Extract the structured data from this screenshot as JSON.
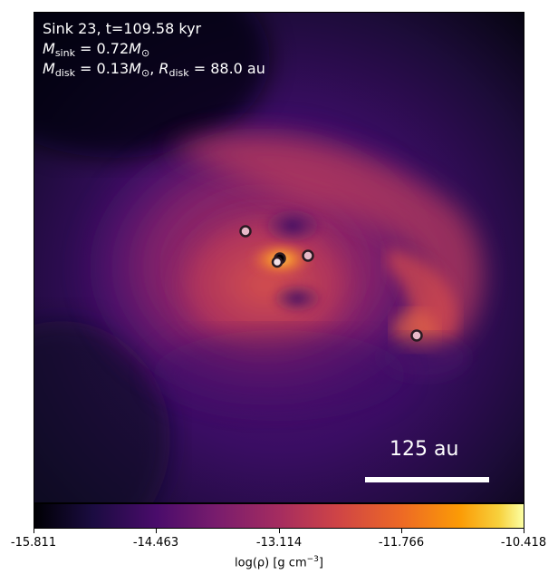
{
  "annotation": {
    "line1": "Sink 23, t=109.58 kyr",
    "m_sink_symbol": "M",
    "m_sink_sub": "sink",
    "m_sink_value": " = 0.72",
    "m_sink_unit": "M",
    "m_disk_symbol": "M",
    "m_disk_sub": "disk",
    "m_disk_value": " = 0.13",
    "m_disk_unit": "M",
    "r_disk_symbol": "R",
    "r_disk_sub": "disk",
    "r_disk_value": " = 88.0 au",
    "unit_sub": "⊙",
    "separator": ", "
  },
  "scalebar": {
    "label": "125 au"
  },
  "colorbar": {
    "colormap": "inferno",
    "ticks": [
      "-15.811",
      "-14.463",
      "-13.114",
      "-11.766",
      "-10.418"
    ],
    "label_prefix": "log(ρ) [g cm",
    "label_exp": "−3",
    "label_suffix": "]"
  },
  "sinks": [
    {
      "name": "sink-a",
      "fill": "#e8b9c8"
    },
    {
      "name": "sink-b",
      "fill": "#000000"
    },
    {
      "name": "sink-c",
      "fill": "#f2dfe6"
    },
    {
      "name": "sink-d",
      "fill": "#e8b9c8"
    },
    {
      "name": "sink-e",
      "fill": "#e8b9c8"
    }
  ]
}
